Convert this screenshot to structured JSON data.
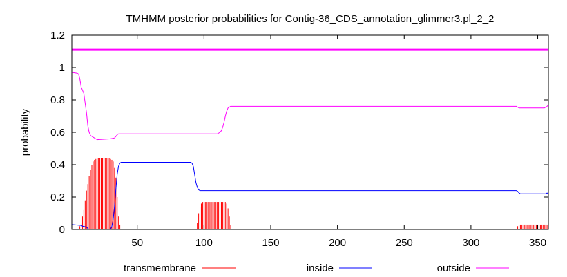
{
  "chart_data": {
    "type": "line",
    "title": "TMHMM posterior probabilities for Contig-36_CDS_annotation_glimmer3.pl_2_2",
    "xlabel": "",
    "ylabel": "probability",
    "xlim": [
      1,
      358
    ],
    "ylim": [
      0,
      1.2
    ],
    "xticks": [
      50,
      100,
      150,
      200,
      250,
      300,
      350
    ],
    "yticks": [
      0,
      0.2,
      0.4,
      0.6,
      0.8,
      1,
      1.2
    ],
    "ytick_labels": [
      "0",
      "0.2",
      "0.4",
      "0.6",
      "0.8",
      "1",
      "1.2"
    ],
    "grid": false,
    "legend_position": "bottom",
    "reference_line": {
      "y": 1.11,
      "color": "#ff00ff"
    },
    "series": [
      {
        "name": "transmembrane",
        "style": "impulses",
        "color": "#ff0000",
        "points": [
          [
            6,
            0.0
          ],
          [
            7,
            0.02
          ],
          [
            8,
            0.04
          ],
          [
            9,
            0.08
          ],
          [
            10,
            0.12
          ],
          [
            11,
            0.18
          ],
          [
            12,
            0.24
          ],
          [
            13,
            0.28
          ],
          [
            14,
            0.33
          ],
          [
            15,
            0.37
          ],
          [
            16,
            0.4
          ],
          [
            17,
            0.42
          ],
          [
            18,
            0.43
          ],
          [
            19,
            0.435
          ],
          [
            20,
            0.44
          ],
          [
            21,
            0.44
          ],
          [
            22,
            0.44
          ],
          [
            23,
            0.44
          ],
          [
            24,
            0.44
          ],
          [
            25,
            0.44
          ],
          [
            26,
            0.44
          ],
          [
            27,
            0.44
          ],
          [
            28,
            0.44
          ],
          [
            29,
            0.44
          ],
          [
            30,
            0.435
          ],
          [
            31,
            0.43
          ],
          [
            32,
            0.42
          ],
          [
            33,
            0.38
          ],
          [
            34,
            0.32
          ],
          [
            35,
            0.2
          ],
          [
            36,
            0.08
          ],
          [
            37,
            0.03
          ],
          [
            38,
            0.0
          ],
          [
            94,
            0.0
          ],
          [
            95,
            0.04
          ],
          [
            96,
            0.1
          ],
          [
            97,
            0.14
          ],
          [
            98,
            0.16
          ],
          [
            99,
            0.17
          ],
          [
            100,
            0.17
          ],
          [
            101,
            0.17
          ],
          [
            102,
            0.17
          ],
          [
            103,
            0.17
          ],
          [
            104,
            0.17
          ],
          [
            105,
            0.17
          ],
          [
            106,
            0.17
          ],
          [
            107,
            0.17
          ],
          [
            108,
            0.17
          ],
          [
            109,
            0.17
          ],
          [
            110,
            0.17
          ],
          [
            111,
            0.17
          ],
          [
            112,
            0.17
          ],
          [
            113,
            0.17
          ],
          [
            114,
            0.17
          ],
          [
            115,
            0.17
          ],
          [
            116,
            0.17
          ],
          [
            117,
            0.16
          ],
          [
            118,
            0.13
          ],
          [
            119,
            0.08
          ],
          [
            120,
            0.03
          ],
          [
            121,
            0.0
          ],
          [
            334,
            0.0
          ],
          [
            335,
            0.02
          ],
          [
            336,
            0.03
          ],
          [
            337,
            0.03
          ],
          [
            338,
            0.03
          ],
          [
            339,
            0.03
          ],
          [
            340,
            0.03
          ],
          [
            341,
            0.03
          ],
          [
            342,
            0.03
          ],
          [
            343,
            0.03
          ],
          [
            344,
            0.03
          ],
          [
            345,
            0.03
          ],
          [
            346,
            0.03
          ],
          [
            347,
            0.03
          ],
          [
            348,
            0.03
          ],
          [
            349,
            0.03
          ],
          [
            350,
            0.03
          ],
          [
            351,
            0.03
          ],
          [
            352,
            0.03
          ],
          [
            353,
            0.03
          ],
          [
            354,
            0.03
          ],
          [
            355,
            0.03
          ],
          [
            356,
            0.03
          ],
          [
            357,
            0.03
          ],
          [
            358,
            0.03
          ]
        ]
      },
      {
        "name": "inside",
        "style": "line",
        "color": "#0000ff",
        "points": [
          [
            1,
            0.03
          ],
          [
            8,
            0.025
          ],
          [
            9,
            0.02
          ],
          [
            12,
            0.015
          ],
          [
            13,
            0.005
          ],
          [
            14,
            0.0
          ],
          [
            30,
            0.0
          ],
          [
            31,
            0.02
          ],
          [
            32,
            0.06
          ],
          [
            33,
            0.14
          ],
          [
            34,
            0.25
          ],
          [
            35,
            0.34
          ],
          [
            36,
            0.39
          ],
          [
            37,
            0.41
          ],
          [
            38,
            0.415
          ],
          [
            90,
            0.415
          ],
          [
            91,
            0.41
          ],
          [
            92,
            0.39
          ],
          [
            93,
            0.34
          ],
          [
            94,
            0.29
          ],
          [
            95,
            0.26
          ],
          [
            96,
            0.245
          ],
          [
            97,
            0.24
          ],
          [
            334,
            0.24
          ],
          [
            335,
            0.235
          ],
          [
            336,
            0.225
          ],
          [
            337,
            0.22
          ],
          [
            356,
            0.22
          ],
          [
            357,
            0.225
          ],
          [
            358,
            0.22
          ]
        ]
      },
      {
        "name": "outside",
        "style": "line",
        "color": "#ff00ff",
        "points": [
          [
            1,
            0.97
          ],
          [
            5,
            0.965
          ],
          [
            6,
            0.96
          ],
          [
            7,
            0.93
          ],
          [
            8,
            0.88
          ],
          [
            9,
            0.86
          ],
          [
            10,
            0.84
          ],
          [
            11,
            0.78
          ],
          [
            12,
            0.72
          ],
          [
            13,
            0.64
          ],
          [
            14,
            0.6
          ],
          [
            15,
            0.58
          ],
          [
            17,
            0.57
          ],
          [
            19,
            0.56
          ],
          [
            20,
            0.555
          ],
          [
            30,
            0.56
          ],
          [
            33,
            0.565
          ],
          [
            34,
            0.575
          ],
          [
            35,
            0.585
          ],
          [
            36,
            0.59
          ],
          [
            110,
            0.59
          ],
          [
            112,
            0.6
          ],
          [
            113,
            0.61
          ],
          [
            114,
            0.63
          ],
          [
            115,
            0.66
          ],
          [
            116,
            0.7
          ],
          [
            117,
            0.73
          ],
          [
            118,
            0.75
          ],
          [
            119,
            0.755
          ],
          [
            120,
            0.76
          ],
          [
            334,
            0.76
          ],
          [
            335,
            0.755
          ],
          [
            336,
            0.75
          ],
          [
            355,
            0.75
          ],
          [
            356,
            0.755
          ],
          [
            357,
            0.76
          ],
          [
            358,
            0.77
          ]
        ]
      }
    ]
  }
}
